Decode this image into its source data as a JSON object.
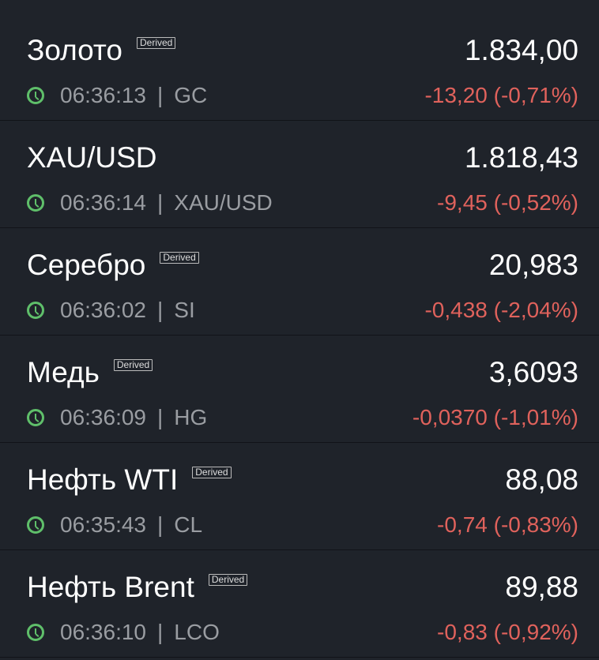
{
  "colors": {
    "background": "#1f232a",
    "negative": "#e0625c",
    "clock": "#5fbf6a"
  },
  "items": [
    {
      "name": "Золото",
      "badge": "Derived",
      "time": "06:36:13",
      "symbol": "GC",
      "price": "1.834,00",
      "change": "-13,20 (-0,71%)"
    },
    {
      "name": "XAU/USD",
      "badge": null,
      "time": "06:36:14",
      "symbol": "XAU/USD",
      "price": "1.818,43",
      "change": "-9,45 (-0,52%)"
    },
    {
      "name": "Серебро",
      "badge": "Derived",
      "time": "06:36:02",
      "symbol": "SI",
      "price": "20,983",
      "change": "-0,438 (-2,04%)"
    },
    {
      "name": "Медь",
      "badge": "Derived",
      "time": "06:36:09",
      "symbol": "HG",
      "price": "3,6093",
      "change": "-0,0370 (-1,01%)"
    },
    {
      "name": "Нефть WTI",
      "badge": "Derived",
      "time": "06:35:43",
      "symbol": "CL",
      "price": "88,08",
      "change": "-0,74 (-0,83%)"
    },
    {
      "name": "Нефть Brent",
      "badge": "Derived",
      "time": "06:36:10",
      "symbol": "LCO",
      "price": "89,88",
      "change": "-0,83 (-0,92%)"
    }
  ],
  "separator": "|"
}
